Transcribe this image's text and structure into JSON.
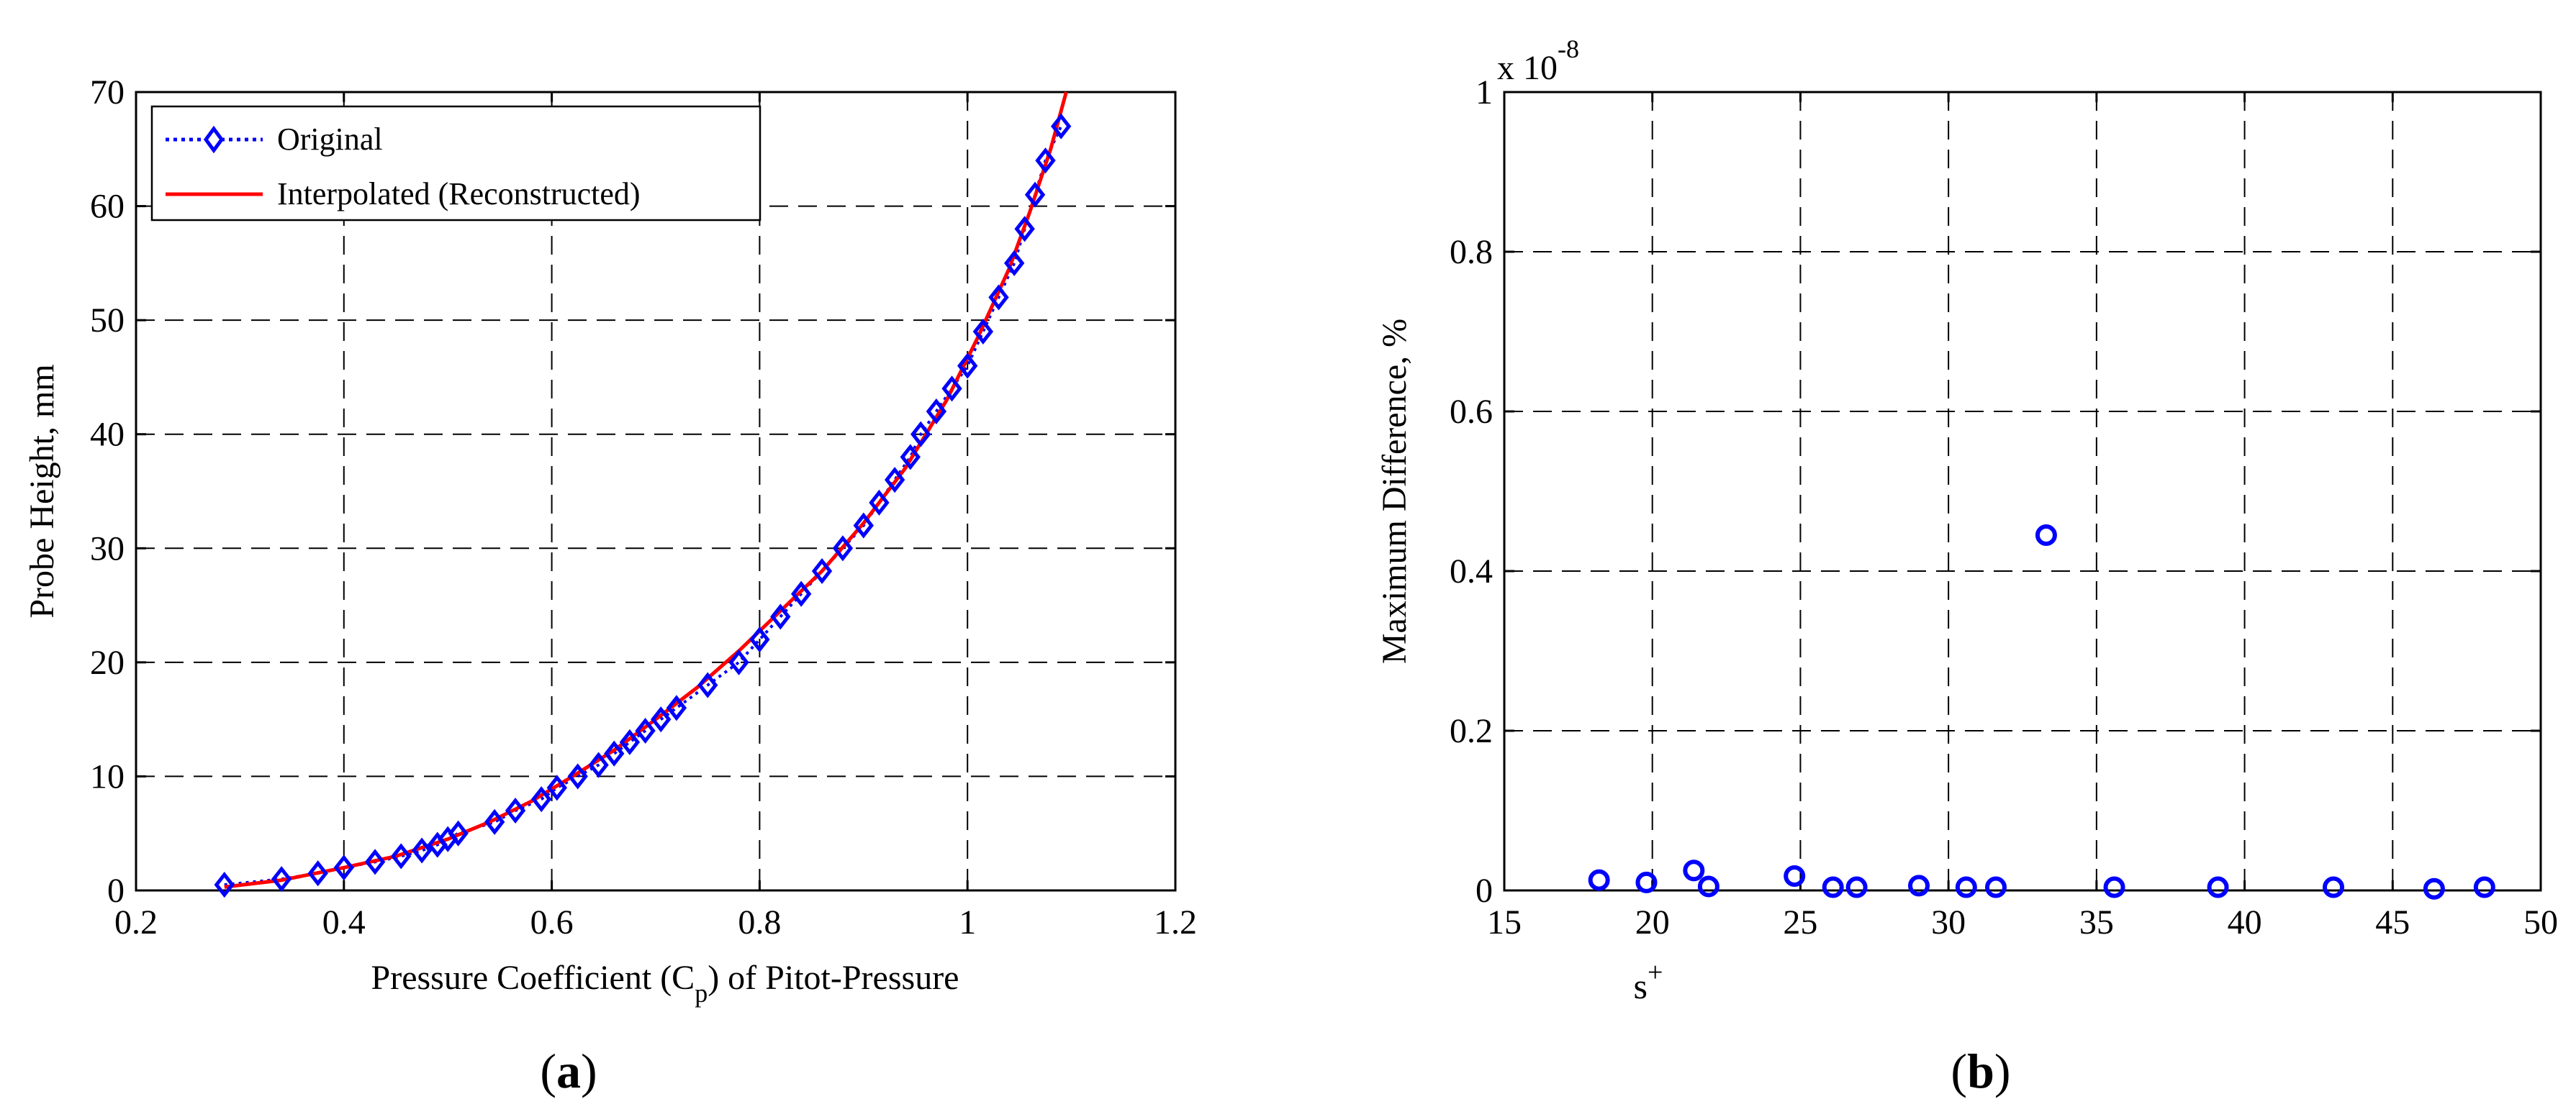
{
  "colors": {
    "original": "#0000FF",
    "interpolated": "#FF0000",
    "axis": "#000000",
    "grid": "#000000"
  },
  "chart_data": [
    {
      "type": "line",
      "panel_label": "a",
      "title": "",
      "xlabel_main": "Pressure Coefficient (C",
      "xlabel_sub": "p",
      "xlabel_tail": ") of Pitot-Pressure",
      "ylabel": "Probe Height, mm",
      "xlim": [
        0.2,
        1.2
      ],
      "ylim": [
        0,
        70
      ],
      "xticks": [
        0.2,
        0.4,
        0.6,
        0.8,
        1,
        1.2
      ],
      "xtick_labels": [
        "0.2",
        "0.4",
        "0.6",
        "0.8",
        "1",
        "1.2"
      ],
      "yticks": [
        0,
        10,
        20,
        30,
        40,
        50,
        60,
        70
      ],
      "ytick_labels": [
        "0",
        "10",
        "20",
        "30",
        "40",
        "50",
        "60",
        "70"
      ],
      "grid": true,
      "legend": {
        "position": "top-left",
        "entries": [
          "Original",
          "Interpolated (Reconstructed)"
        ]
      },
      "series": [
        {
          "name": "Original",
          "style": "dotted-diamond",
          "x": [
            0.285,
            0.34,
            0.375,
            0.4,
            0.43,
            0.455,
            0.475,
            0.49,
            0.5,
            0.51,
            0.545,
            0.565,
            0.59,
            0.605,
            0.625,
            0.645,
            0.66,
            0.675,
            0.69,
            0.705,
            0.72,
            0.75,
            0.78,
            0.8,
            0.82,
            0.84,
            0.86,
            0.88,
            0.9,
            0.915,
            0.93,
            0.945,
            0.955,
            0.97,
            0.985,
            1.0,
            1.015,
            1.03,
            1.045,
            1.055,
            1.065,
            1.075,
            1.09
          ],
          "y": [
            0.5,
            1,
            1.5,
            2,
            2.5,
            3,
            3.5,
            4,
            4.5,
            5,
            6,
            7,
            8,
            9,
            10,
            11,
            12,
            13,
            14,
            15,
            16,
            18,
            20,
            22,
            24,
            26,
            28,
            30,
            32,
            34,
            36,
            38,
            40,
            42,
            44,
            46,
            49,
            52,
            55,
            58,
            61,
            64,
            67
          ]
        },
        {
          "name": "Interpolated (Reconstructed)",
          "style": "solid",
          "x": [
            0.285,
            0.34,
            0.4,
            0.45,
            0.5,
            0.54,
            0.58,
            0.62,
            0.66,
            0.7,
            0.74,
            0.78,
            0.82,
            0.86,
            0.9,
            0.94,
            0.98,
            1.01,
            1.04,
            1.06,
            1.08,
            1.095
          ],
          "y": [
            0.3,
            0.9,
            2,
            3,
            4.5,
            6,
            7.8,
            10,
            12.3,
            15,
            17.8,
            21,
            24.5,
            28,
            32.2,
            37,
            43,
            48.5,
            54.5,
            59.5,
            65,
            70
          ]
        }
      ]
    },
    {
      "type": "scatter",
      "panel_label": "b",
      "title": "",
      "exponent_base": "x 10",
      "exponent_power": "-8",
      "xlabel_main": "s",
      "xlabel_sup": "+",
      "ylabel": "Maximum Difference, %",
      "xlim": [
        15,
        50
      ],
      "ylim": [
        0,
        1
      ],
      "xticks": [
        15,
        20,
        25,
        30,
        35,
        40,
        45,
        50
      ],
      "xtick_labels": [
        "15",
        "20",
        "25",
        "30",
        "35",
        "40",
        "45",
        "50"
      ],
      "yticks": [
        0,
        0.2,
        0.4,
        0.6,
        0.8,
        1
      ],
      "ytick_labels": [
        "0",
        "0.2",
        "0.4",
        "0.6",
        "0.8",
        "1"
      ],
      "grid": true,
      "series": [
        {
          "name": "Maximum Difference",
          "marker": "circle",
          "x": [
            18.2,
            19.8,
            21.4,
            21.9,
            24.8,
            26.1,
            26.9,
            29.0,
            30.6,
            31.6,
            33.3,
            35.6,
            39.1,
            43.0,
            46.4,
            48.1
          ],
          "y": [
            0.013,
            0.01,
            0.025,
            0.005,
            0.018,
            0.004,
            0.004,
            0.006,
            0.004,
            0.004,
            0.445,
            0.004,
            0.004,
            0.004,
            0.002,
            0.004
          ]
        }
      ]
    }
  ]
}
